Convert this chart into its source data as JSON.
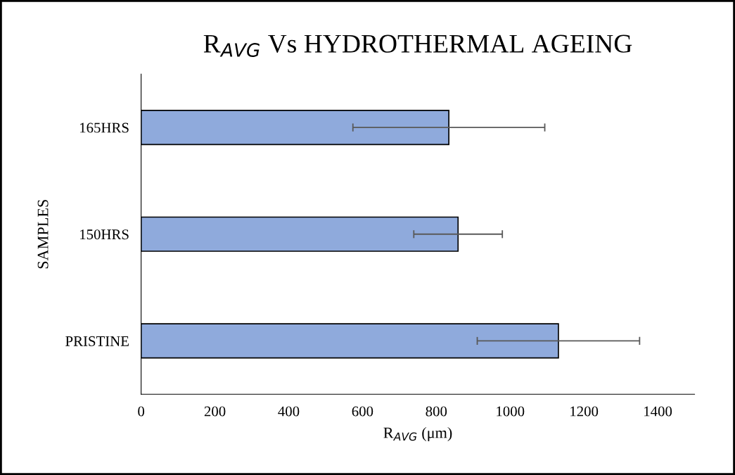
{
  "chart_data": {
    "type": "bar",
    "orientation": "horizontal",
    "title": "R$_{AVG}$ Vs HYDROTHERMAL AGEING",
    "xlabel": "R$_{AVG}$ (μm)",
    "ylabel": "SAMPLES",
    "categories": [
      "165HRS",
      "150HRS",
      "PRISTINE"
    ],
    "values": [
      834,
      859,
      1131
    ],
    "errors": [
      260,
      120,
      220
    ],
    "color": "#8faadc",
    "xlim": [
      0,
      1500
    ],
    "xticks": [
      0,
      200,
      400,
      600,
      800,
      1000,
      1200,
      1400
    ],
    "grid": false
  }
}
